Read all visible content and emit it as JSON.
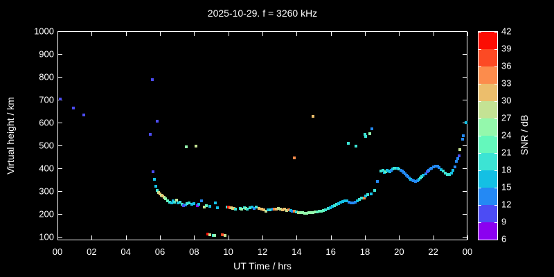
{
  "title": "2025-10-29. f = 3260 kHz",
  "chart_data": {
    "type": "scatter",
    "title": "2025-10-29. f = 3260 kHz",
    "xlabel": "UT Time / hrs",
    "ylabel": "Virtual height / km",
    "cblabel": "SNR / dB",
    "xlim": [
      0,
      24
    ],
    "ylim": [
      85,
      1000
    ],
    "grid": false,
    "background": "#000000",
    "frame_color": "#ffffff",
    "x_ticks": {
      "values": [
        0,
        2,
        4,
        6,
        8,
        10,
        12,
        14,
        16,
        18,
        20,
        22,
        24
      ],
      "labels": [
        "00",
        "02",
        "04",
        "06",
        "08",
        "10",
        "12",
        "14",
        "16",
        "18",
        "20",
        "22",
        "00"
      ]
    },
    "y_ticks": {
      "values": [
        100,
        200,
        300,
        400,
        500,
        600,
        700,
        800,
        900,
        1000
      ],
      "labels": [
        "100",
        "200",
        "300",
        "400",
        "500",
        "600",
        "700",
        "800",
        "900",
        "1000"
      ]
    },
    "colorbar": {
      "min": 6,
      "max": 42,
      "step": 3,
      "tick_labels": [
        "6",
        "9",
        "12",
        "15",
        "18",
        "21",
        "24",
        "27",
        "30",
        "33",
        "36",
        "39",
        "42"
      ],
      "colors": [
        "#8B00F0",
        "#4C4CF4",
        "#2489F4",
        "#14C0E4",
        "#3CE4D4",
        "#64F8BC",
        "#94F8AC",
        "#C4E294",
        "#ECBE6C",
        "#FC8C4C",
        "#FC4A24",
        "#FC0D04"
      ]
    },
    "points_format": [
      "ut_hour",
      "virtual_height_km",
      "snr_db"
    ],
    "points": [
      [
        0.15,
        703,
        10.5
      ],
      [
        0.95,
        664,
        10.5
      ],
      [
        1.55,
        633,
        10.5
      ],
      [
        5.45,
        549,
        10.5
      ],
      [
        5.55,
        788,
        10.5
      ],
      [
        5.6,
        385,
        10.5
      ],
      [
        5.68,
        352,
        16.5
      ],
      [
        5.76,
        321,
        16.5
      ],
      [
        5.84,
        606,
        10.5
      ],
      [
        5.85,
        303,
        19.5
      ],
      [
        5.93,
        295,
        28.5
      ],
      [
        6.01,
        289,
        31.5
      ],
      [
        6.09,
        283,
        28.5
      ],
      [
        6.17,
        279,
        31.5
      ],
      [
        6.25,
        273,
        28.5
      ],
      [
        6.33,
        267,
        25.5
      ],
      [
        6.45,
        258,
        22.5
      ],
      [
        6.57,
        252,
        19.5
      ],
      [
        6.69,
        249,
        16.5
      ],
      [
        6.77,
        258,
        16.5
      ],
      [
        6.85,
        252,
        19.5
      ],
      [
        6.97,
        261,
        28.5
      ],
      [
        7.05,
        249,
        16.5
      ],
      [
        7.18,
        252,
        19.5
      ],
      [
        7.3,
        242,
        19.5
      ],
      [
        7.38,
        236,
        10.5
      ],
      [
        7.5,
        239,
        13.5
      ],
      [
        7.58,
        245,
        19.5
      ],
      [
        7.7,
        248,
        19.5
      ],
      [
        7.86,
        242,
        16.5
      ],
      [
        7.99,
        245,
        16.5
      ],
      [
        8.19,
        236,
        7.5
      ],
      [
        8.27,
        242,
        16.5
      ],
      [
        8.43,
        258,
        13.5
      ],
      [
        8.59,
        230,
        28.5
      ],
      [
        8.72,
        236,
        22.5
      ],
      [
        8.92,
        233,
        16.5
      ],
      [
        9.24,
        248,
        16.5
      ],
      [
        9.36,
        227,
        16.5
      ],
      [
        7.54,
        494,
        25.5
      ],
      [
        8.11,
        497,
        28.5
      ],
      [
        8.8,
        112,
        40.5
      ],
      [
        8.92,
        109,
        28.5
      ],
      [
        9.12,
        106,
        19.5
      ],
      [
        9.22,
        106,
        25.5
      ],
      [
        9.65,
        109,
        37.5
      ],
      [
        9.8,
        106,
        28.5
      ],
      [
        9.93,
        230,
        19.5
      ],
      [
        10.01,
        230,
        40.5
      ],
      [
        10.09,
        228,
        34.5
      ],
      [
        10.17,
        227,
        31.5
      ],
      [
        10.25,
        225,
        28.5
      ],
      [
        10.33,
        225,
        31.5
      ],
      [
        10.42,
        222,
        19.5
      ],
      [
        10.7,
        225,
        19.5
      ],
      [
        10.78,
        222,
        25.5
      ],
      [
        10.94,
        227,
        19.5
      ],
      [
        11.02,
        225,
        25.5
      ],
      [
        11.1,
        221,
        19.5
      ],
      [
        11.26,
        227,
        19.5
      ],
      [
        11.39,
        230,
        16.5
      ],
      [
        11.51,
        224,
        13.5
      ],
      [
        11.63,
        230,
        19.5
      ],
      [
        11.79,
        224,
        31.5
      ],
      [
        11.95,
        221,
        31.5
      ],
      [
        12.07,
        218,
        31.5
      ],
      [
        12.19,
        212,
        28.5
      ],
      [
        12.31,
        218,
        16.5
      ],
      [
        12.43,
        218,
        19.5
      ],
      [
        12.6,
        221,
        13.5
      ],
      [
        12.68,
        221,
        34.5
      ],
      [
        12.8,
        221,
        31.5
      ],
      [
        12.92,
        224,
        28.5
      ],
      [
        13.04,
        221,
        28.5
      ],
      [
        13.16,
        218,
        31.5
      ],
      [
        13.28,
        221,
        31.5
      ],
      [
        13.41,
        215,
        28.5
      ],
      [
        13.53,
        218,
        34.5
      ],
      [
        13.65,
        215,
        16.5
      ],
      [
        13.73,
        212,
        13.5
      ],
      [
        13.85,
        212,
        34.5
      ],
      [
        13.97,
        209,
        19.5
      ],
      [
        14.09,
        206,
        28.5
      ],
      [
        14.22,
        206,
        25.5
      ],
      [
        14.34,
        206,
        25.5
      ],
      [
        14.46,
        203,
        25.5
      ],
      [
        14.58,
        203,
        25.5
      ],
      [
        14.7,
        206,
        25.5
      ],
      [
        14.82,
        206,
        25.5
      ],
      [
        14.94,
        206,
        25.5
      ],
      [
        15.07,
        209,
        25.5
      ],
      [
        15.19,
        209,
        22.5
      ],
      [
        15.31,
        212,
        22.5
      ],
      [
        15.43,
        212,
        22.5
      ],
      [
        15.55,
        215,
        22.5
      ],
      [
        15.67,
        218,
        19.5
      ],
      [
        13.87,
        446,
        34.5
      ],
      [
        14.96,
        627,
        31.5
      ],
      [
        15.84,
        224,
        19.5
      ],
      [
        15.96,
        227,
        16.5
      ],
      [
        16.08,
        233,
        16.5
      ],
      [
        16.2,
        236,
        19.5
      ],
      [
        16.32,
        242,
        19.5
      ],
      [
        16.44,
        245,
        16.5
      ],
      [
        16.57,
        251,
        16.5
      ],
      [
        16.69,
        254,
        16.5
      ],
      [
        16.81,
        257,
        16.5
      ],
      [
        16.93,
        257,
        16.5
      ],
      [
        17.05,
        251,
        13.5
      ],
      [
        17.17,
        248,
        13.5
      ],
      [
        17.3,
        248,
        13.5
      ],
      [
        17.42,
        251,
        13.5
      ],
      [
        17.54,
        257,
        16.5
      ],
      [
        17.66,
        263,
        19.5
      ],
      [
        17.78,
        269,
        19.5
      ],
      [
        17.95,
        269,
        34.5
      ],
      [
        18.03,
        278,
        16.5
      ],
      [
        18.15,
        284,
        19.5
      ],
      [
        18.36,
        288,
        16.5
      ],
      [
        17.03,
        509,
        19.5
      ],
      [
        17.48,
        497,
        19.5
      ],
      [
        17.98,
        548,
        19.5
      ],
      [
        18.05,
        539,
        19.5
      ],
      [
        18.3,
        551,
        25.5
      ],
      [
        18.4,
        573,
        13.5
      ],
      [
        18.57,
        303,
        19.5
      ],
      [
        18.73,
        342,
        13.5
      ],
      [
        18.93,
        388,
        19.5
      ],
      [
        19.06,
        391,
        19.5
      ],
      [
        19.14,
        382,
        16.5
      ],
      [
        19.22,
        385,
        22.5
      ],
      [
        19.3,
        391,
        16.5
      ],
      [
        19.38,
        388,
        16.5
      ],
      [
        19.47,
        385,
        16.5
      ],
      [
        19.55,
        391,
        13.5
      ],
      [
        19.63,
        397,
        16.5
      ],
      [
        19.71,
        400,
        19.5
      ],
      [
        19.79,
        400,
        19.5
      ],
      [
        19.91,
        400,
        16.5
      ],
      [
        19.99,
        397,
        19.5
      ],
      [
        20.11,
        391,
        13.5
      ],
      [
        20.19,
        388,
        13.5
      ],
      [
        20.27,
        382,
        13.5
      ],
      [
        20.36,
        376,
        13.5
      ],
      [
        20.44,
        370,
        13.5
      ],
      [
        20.52,
        364,
        13.5
      ],
      [
        20.6,
        358,
        13.5
      ],
      [
        20.68,
        352,
        16.5
      ],
      [
        20.76,
        348,
        13.5
      ],
      [
        20.84,
        345,
        13.5
      ],
      [
        20.96,
        342,
        13.5
      ],
      [
        21.08,
        345,
        13.5
      ],
      [
        21.16,
        352,
        16.5
      ],
      [
        21.24,
        358,
        19.5
      ],
      [
        21.32,
        364,
        19.5
      ],
      [
        21.4,
        370,
        16.5
      ],
      [
        21.57,
        376,
        13.5
      ],
      [
        21.65,
        385,
        10.5
      ],
      [
        21.73,
        391,
        13.5
      ],
      [
        21.81,
        397,
        13.5
      ],
      [
        21.89,
        400,
        13.5
      ],
      [
        22.01,
        406,
        13.5
      ],
      [
        22.13,
        409,
        13.5
      ],
      [
        22.25,
        409,
        13.5
      ],
      [
        22.34,
        403,
        13.5
      ],
      [
        22.46,
        394,
        16.5
      ],
      [
        22.58,
        388,
        19.5
      ],
      [
        22.7,
        379,
        19.5
      ],
      [
        22.82,
        373,
        19.5
      ],
      [
        22.94,
        373,
        19.5
      ],
      [
        23.06,
        379,
        16.5
      ],
      [
        23.15,
        391,
        16.5
      ],
      [
        23.27,
        406,
        13.5
      ],
      [
        23.35,
        430,
        13.5
      ],
      [
        23.44,
        442,
        13.5
      ],
      [
        23.52,
        455,
        10.5
      ],
      [
        23.56,
        482,
        28.5
      ],
      [
        23.7,
        527,
        13.5
      ],
      [
        23.76,
        543,
        13.5
      ],
      [
        23.92,
        600,
        16.5
      ]
    ]
  }
}
